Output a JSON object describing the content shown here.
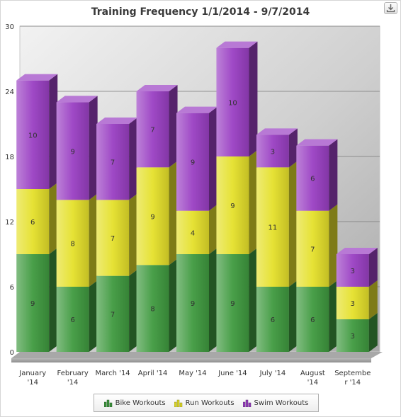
{
  "chart_data": {
    "type": "bar",
    "stacked": true,
    "title": "Training Frequency 1/1/2014 - 9/7/2014",
    "categories": [
      [
        "January",
        "'14"
      ],
      [
        "February",
        "'14"
      ],
      [
        "March '14"
      ],
      [
        "April '14"
      ],
      [
        "May '14"
      ],
      [
        "June '14"
      ],
      [
        "July '14"
      ],
      [
        "August",
        "'14"
      ],
      [
        "Septembe",
        "r '14"
      ]
    ],
    "series": [
      {
        "name": "Bike Workouts",
        "color": "#3f9a3f",
        "values": [
          9,
          6,
          7,
          8,
          9,
          9,
          6,
          6,
          3
        ]
      },
      {
        "name": "Run Workouts",
        "color": "#e5e02a",
        "values": [
          6,
          8,
          7,
          9,
          4,
          9,
          11,
          7,
          3
        ]
      },
      {
        "name": "Swim Workouts",
        "color": "#9a3fc3",
        "values": [
          10,
          9,
          7,
          7,
          9,
          10,
          3,
          6,
          3
        ]
      }
    ],
    "yticks": [
      "0",
      "6",
      "12",
      "18",
      "24",
      "30"
    ],
    "ylim": [
      0,
      30
    ],
    "grid": true,
    "legend_position": "bottom"
  },
  "export_icon": "download-icon"
}
